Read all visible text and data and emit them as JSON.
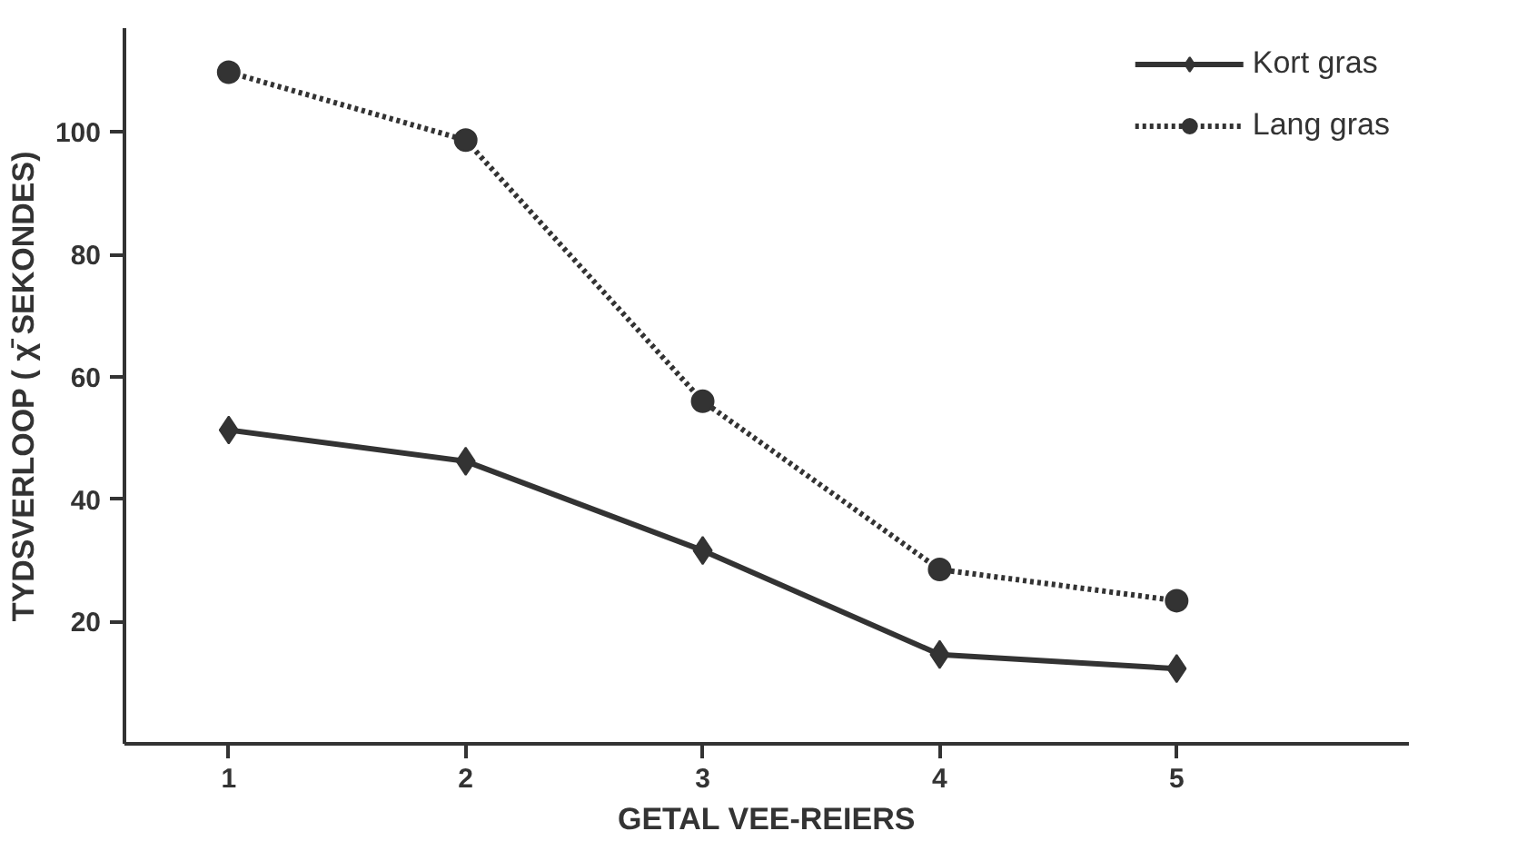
{
  "chart_data": {
    "type": "line",
    "xlabel": "GETAL VEE-REIERS",
    "ylabel": "TYDSVERLOOP ( χ̄ SEKONDES)",
    "x": [
      1,
      2,
      3,
      4,
      5
    ],
    "xlim": [
      0.56,
      5.98
    ],
    "xticks": [
      1,
      2,
      3,
      4,
      5
    ],
    "ylim": [
      0,
      117
    ],
    "yticks": [
      20,
      40,
      60,
      80,
      100
    ],
    "grid": false,
    "legend": "top right",
    "series": [
      {
        "name": "Kort gras",
        "color": "#333333",
        "marker": "diamond",
        "line_style": "solid",
        "values": [
          51.3,
          46.2,
          31.6,
          14.6,
          12.3
        ]
      },
      {
        "name": "Lang gras",
        "color": "#333333",
        "marker": "circle",
        "line_style": "dotted",
        "values": [
          109.8,
          98.7,
          56,
          28.5,
          23.4
        ]
      }
    ]
  }
}
